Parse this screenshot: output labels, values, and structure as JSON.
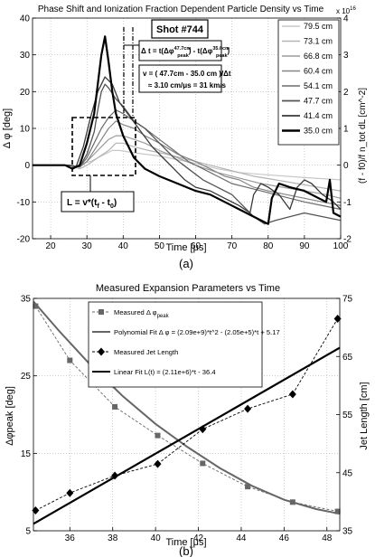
{
  "chart_data": [
    {
      "type": "line",
      "title": "Phase Shift and Ionization Fraction Dependent Particle Density vs Time",
      "xlabel": "Time  [μs]",
      "ylabel": "Δ φ  [deg]",
      "ylabel_right": "(f - f0)/f n_tot dL  [cm^-2]",
      "right_exponent": "x 10",
      "right_exponent_power": "16",
      "xlim": [
        15,
        100
      ],
      "ylim": [
        -20,
        40
      ],
      "ylim_right": [
        -2,
        4
      ],
      "xticks": [
        20,
        30,
        40,
        50,
        60,
        70,
        80,
        90,
        100
      ],
      "yticks": [
        -20,
        -10,
        0,
        10,
        20,
        30,
        40
      ],
      "yticks_right": [
        -2,
        -1,
        0,
        1,
        2,
        3,
        4
      ],
      "grid": true,
      "legend_position": "top-right",
      "shot_label": "Shot #744",
      "annotations": {
        "delta_t_prefix": "Δ t = t(Δφ",
        "delta_t_sup1": "47.7cm",
        "delta_t_sub1": "peak",
        "delta_t_mid": ") - t(Δφ",
        "delta_t_sup2": "35.0cm",
        "delta_t_sub2": "peak",
        "delta_t_end": ")",
        "velocity_line1": "v  = ( 47.7cm - 35.0 cm )/Δt",
        "velocity_line2": "≈ 3.10 cm/μs = 31 km/s",
        "length": "L = v*(t",
        "length_sub1": "f",
        "length_mid": " - t",
        "length_sub2": "0",
        "length_end": ")"
      },
      "series": [
        {
          "name": "79.5 cm",
          "color": "#c8c8c8",
          "width": 1.2,
          "x": [
            15,
            20,
            24,
            27,
            29,
            31,
            33,
            35,
            37,
            39,
            42,
            46,
            50,
            55,
            60,
            66,
            72,
            78,
            85,
            92,
            100
          ],
          "y": [
            0,
            0,
            0,
            -0.5,
            0.5,
            1,
            2,
            3,
            4,
            4,
            3.5,
            3,
            2.5,
            1.5,
            0.5,
            -1,
            -2,
            -2.5,
            -3,
            -3.5,
            -4
          ]
        },
        {
          "name": "73.1 cm",
          "color": "#b4b4b4",
          "width": 1.2,
          "x": [
            15,
            20,
            25,
            28,
            30,
            33,
            36,
            38,
            40,
            43,
            47,
            52,
            58,
            64,
            70,
            76,
            82,
            88,
            94,
            100
          ],
          "y": [
            0,
            0,
            0,
            -1,
            0,
            2,
            4,
            6,
            6,
            5,
            4,
            3,
            1.5,
            0,
            -1.5,
            -3,
            -4,
            -5,
            -6,
            -7
          ]
        },
        {
          "name": "66.8 cm",
          "color": "#9c9c9c",
          "width": 1.2,
          "x": [
            15,
            20,
            25,
            28,
            30,
            32,
            34,
            36,
            38,
            40,
            43,
            46,
            50,
            55,
            60,
            66,
            72,
            78,
            84,
            90,
            96,
            100
          ],
          "y": [
            0,
            0,
            0,
            -0.5,
            1,
            3,
            5,
            7,
            8,
            8,
            7,
            6,
            4,
            2,
            0,
            -2,
            -3.5,
            -5,
            -6,
            -7,
            -8,
            -9
          ]
        },
        {
          "name": "60.4 cm",
          "color": "#848484",
          "width": 1.2,
          "x": [
            15,
            20,
            25,
            28,
            30,
            32,
            34,
            36,
            38,
            40,
            43,
            46,
            50,
            55,
            60,
            64,
            68,
            72,
            76,
            80,
            85,
            90,
            95,
            100
          ],
          "y": [
            0,
            0,
            0,
            -0.5,
            1,
            4,
            7,
            10,
            12,
            11,
            10,
            8,
            6,
            3,
            1,
            -1,
            -3,
            -4,
            -6,
            -7,
            -8,
            -9,
            -10,
            -11
          ]
        },
        {
          "name": "54.1 cm",
          "color": "#6c6c6c",
          "width": 1.2,
          "x": [
            15,
            20,
            25,
            28,
            30,
            32,
            34,
            36,
            38,
            40,
            43,
            46,
            50,
            54,
            58,
            62,
            66,
            70,
            74,
            78,
            82,
            86,
            90,
            95,
            100
          ],
          "y": [
            0,
            0,
            0,
            -0.5,
            2,
            6,
            10,
            13,
            15,
            14,
            12,
            10,
            7,
            4,
            1,
            -1,
            -3,
            -5,
            -6,
            -7,
            -8,
            -9,
            -10,
            -11,
            -12
          ]
        },
        {
          "name": "47.7 cm",
          "color": "#545454",
          "width": 1.3,
          "x": [
            15,
            20,
            25,
            28,
            30,
            32,
            33,
            34,
            35,
            36,
            38,
            40,
            43,
            46,
            50,
            54,
            58,
            62,
            66,
            70,
            73,
            76,
            79,
            82,
            86,
            90,
            95,
            100
          ],
          "y": [
            0,
            0,
            0,
            -0.5,
            3,
            9,
            15,
            20,
            22,
            21,
            18,
            16,
            12,
            10,
            6,
            2,
            -1,
            -4,
            -6,
            -8,
            -11,
            -14,
            -16,
            -15,
            -14,
            -13,
            -14,
            -15
          ]
        },
        {
          "name": "41.4 cm",
          "color": "#3a3a3a",
          "width": 1.3,
          "x": [
            15,
            20,
            25,
            27,
            29,
            31,
            33,
            35,
            37,
            39,
            42,
            45,
            48,
            51,
            54,
            57,
            60,
            64,
            68,
            72,
            75,
            76,
            78,
            80,
            83,
            86,
            88,
            90,
            92,
            95,
            98,
            100
          ],
          "y": [
            0,
            0,
            0,
            -0.5,
            5,
            13,
            20,
            24,
            22,
            17,
            13,
            9,
            5,
            2,
            -1,
            -4,
            -6,
            -7,
            -9,
            -11,
            -13,
            -8,
            -5,
            -6,
            -8,
            -12,
            -6,
            -4,
            -5,
            -8,
            -10,
            -12
          ]
        },
        {
          "name": "35.0 cm",
          "color": "#000000",
          "width": 2.2,
          "x": [
            15,
            20,
            24,
            26,
            28,
            30,
            32,
            33,
            34,
            35,
            36,
            37,
            38,
            40,
            43,
            46,
            50,
            55,
            60,
            64,
            68,
            72,
            76,
            80,
            81,
            83,
            86,
            90,
            94,
            96,
            97,
            98,
            100
          ],
          "y": [
            0,
            0,
            0,
            -1,
            0,
            6,
            14,
            22,
            30,
            35,
            28,
            20,
            14,
            8,
            2,
            -1,
            -3,
            -5,
            -7,
            -8,
            -10,
            -12,
            -14,
            -16,
            -9,
            -5,
            -6,
            -7,
            -9,
            -10,
            -4,
            -13,
            -14
          ]
        }
      ]
    },
    {
      "type": "scatter",
      "title": "Measured Expansion Parameters vs Time",
      "xlabel": "Time  [μs]",
      "ylabel": "Δφpeak [deg]",
      "ylabel_right": "Jet Length  [cm]",
      "xlim": [
        34.3,
        48.6
      ],
      "ylim": [
        5,
        35
      ],
      "ylim_right": [
        35,
        75
      ],
      "xticks": [
        36,
        38,
        40,
        42,
        44,
        46,
        48
      ],
      "yticks": [
        5,
        15,
        25,
        35
      ],
      "yticks_right": [
        35,
        45,
        55,
        65,
        75
      ],
      "grid": true,
      "legend_position": "top-left",
      "series": [
        {
          "name": "Measured Δ φ",
          "name_sub": "peak",
          "marker": "square",
          "color": "#666666",
          "axis": "left",
          "x": [
            34.4,
            36.0,
            38.1,
            40.1,
            42.2,
            44.3,
            46.4,
            48.5
          ],
          "y": [
            34.0,
            27.0,
            21.0,
            17.3,
            13.7,
            10.7,
            8.7,
            7.5
          ]
        },
        {
          "name": "Polynomial Fit Δ φ = (2.09e+9)*t^2 - (2.05e+5)*t + 5.17",
          "type": "curve",
          "color": "#666666",
          "axis": "left",
          "x": [
            34.3,
            35.5,
            37,
            38.5,
            40,
            41.5,
            43,
            44.5,
            46,
            47.5,
            48.6
          ],
          "y": [
            34.6,
            30.8,
            26.3,
            22.3,
            18.8,
            15.8,
            13.1,
            10.8,
            9.0,
            7.8,
            7.2
          ]
        },
        {
          "name": "Measured Jet Length",
          "marker": "diamond",
          "color": "#000000",
          "axis": "right",
          "x": [
            34.4,
            36.0,
            38.1,
            40.1,
            42.2,
            44.3,
            46.4,
            48.5
          ],
          "y": [
            38.5,
            41.5,
            44.5,
            46.5,
            52.5,
            56.0,
            58.5,
            71.5
          ]
        },
        {
          "name": "Linear Fit L(t) = (2.11e+6)*t - 36.4",
          "type": "line",
          "color": "#000000",
          "axis": "right",
          "x": [
            34.3,
            48.6
          ],
          "y": [
            36.2,
            66.5
          ]
        }
      ]
    }
  ],
  "panel_labels": {
    "a": "(a)",
    "b": "(b)"
  }
}
